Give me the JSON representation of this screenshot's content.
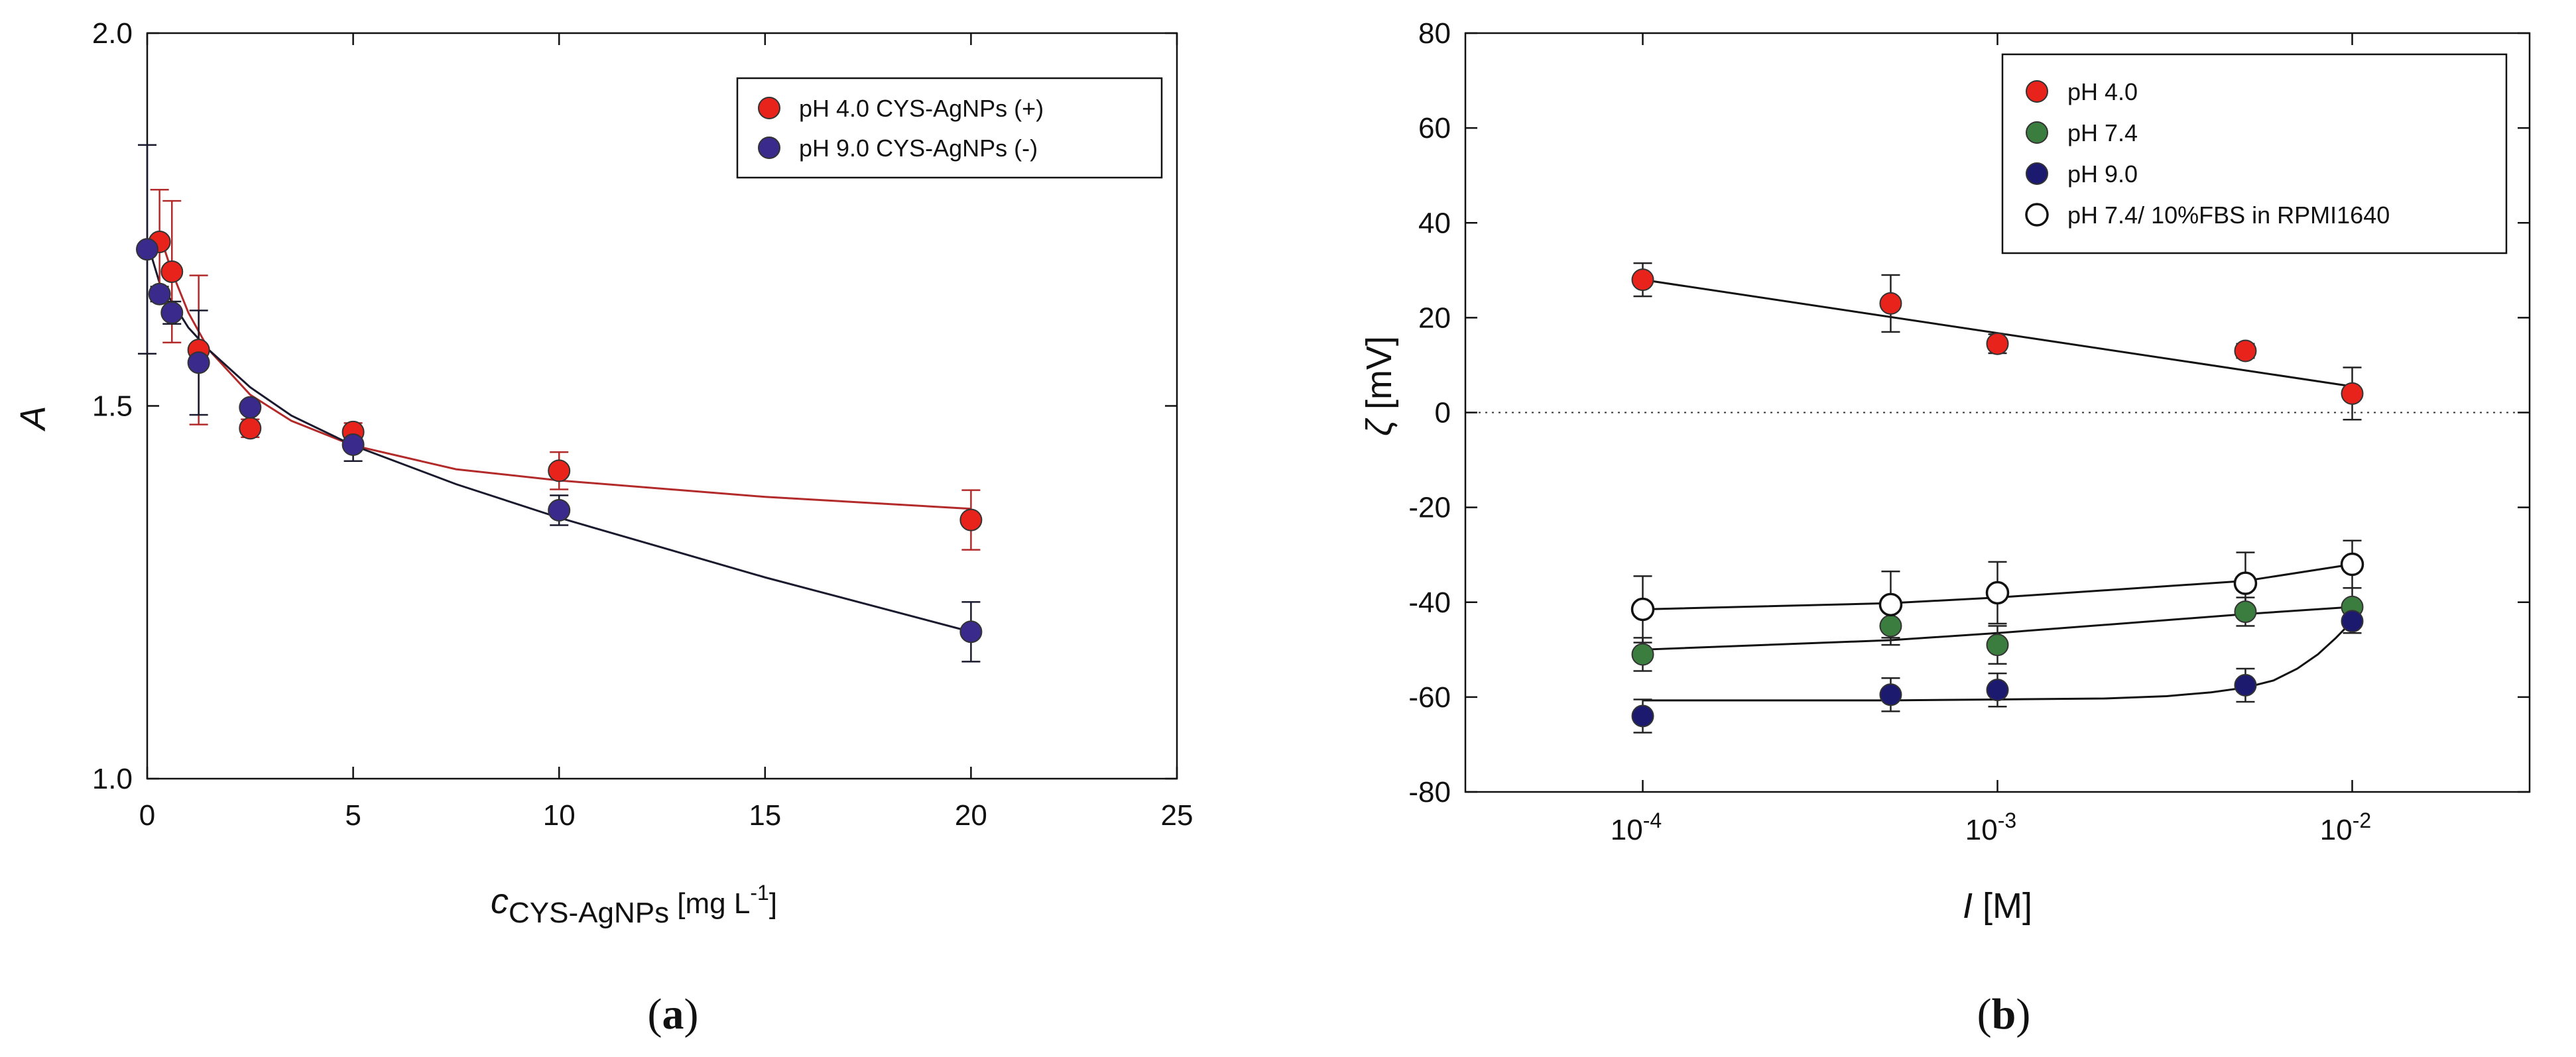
{
  "chart_data": [
    {
      "type": "scatter",
      "panel_label": "a",
      "xlabel_main": "c",
      "xlabel_sub": "CYS-AgNPs",
      "xlabel_unit_pre": "[mg L",
      "xlabel_unit_sup": "-1",
      "xlabel_unit_post": "]",
      "ylabel": "A",
      "xlim": [
        0,
        25
      ],
      "ylim": [
        1.0,
        2.0
      ],
      "xticks": [
        0,
        5,
        10,
        15,
        20,
        25
      ],
      "xtick_labels": [
        "0",
        "5",
        "10",
        "15",
        "20",
        "25"
      ],
      "yticks": [
        1.0,
        1.5,
        2.0
      ],
      "ytick_labels": [
        "1.0",
        "1.5",
        "2.0"
      ],
      "legend_position": "top-right",
      "series": [
        {
          "name": "pH 4.0 CYS-AgNPs (+)",
          "color": "#e8231c",
          "fill": "filled",
          "x": [
            0.3,
            0.6,
            1.25,
            2.5,
            5,
            10,
            20
          ],
          "y": [
            1.72,
            1.68,
            1.575,
            1.47,
            1.465,
            1.413,
            1.347
          ],
          "err": [
            0.07,
            0.095,
            0.1,
            0.012,
            0.012,
            0.025,
            0.04
          ],
          "fit": [
            [
              0.3,
              1.73
            ],
            [
              0.6,
              1.68
            ],
            [
              1.0,
              1.625
            ],
            [
              1.5,
              1.575
            ],
            [
              2.5,
              1.515
            ],
            [
              3.5,
              1.48
            ],
            [
              5,
              1.447
            ],
            [
              7.5,
              1.415
            ],
            [
              10,
              1.4
            ],
            [
              15,
              1.378
            ],
            [
              20,
              1.362
            ]
          ],
          "fit_color": "#b32a2a"
        },
        {
          "name": "pH 9.0 CYS-AgNPs (-)",
          "color": "#3a2a8c",
          "fill": "filled",
          "x": [
            0,
            0.3,
            0.6,
            1.25,
            2.5,
            5,
            10,
            20
          ],
          "y": [
            1.71,
            1.65,
            1.625,
            1.558,
            1.498,
            1.448,
            1.36,
            1.197
          ],
          "err": [
            0.14,
            0.01,
            0.015,
            0.07,
            0.008,
            0.022,
            0.02,
            0.04
          ],
          "fit": [
            [
              0,
              1.72
            ],
            [
              0.3,
              1.665
            ],
            [
              0.6,
              1.64
            ],
            [
              1,
              1.605
            ],
            [
              1.5,
              1.575
            ],
            [
              2.5,
              1.525
            ],
            [
              3.5,
              1.487
            ],
            [
              5,
              1.447
            ],
            [
              7.5,
              1.395
            ],
            [
              10,
              1.35
            ],
            [
              15,
              1.27
            ],
            [
              20,
              1.197
            ]
          ],
          "fit_color": "#1a1a2e"
        }
      ]
    },
    {
      "type": "scatter",
      "panel_label": "b",
      "xscale": "log",
      "xlabel_main": "I",
      "xlabel_unit": "[M]",
      "ylabel_symbol": "ζ",
      "ylabel_unit": "[mV]",
      "xlim_log10": [
        -4.5,
        -1.5
      ],
      "ylim": [
        -80,
        80
      ],
      "xticks_log10": [
        -4,
        -3,
        -2
      ],
      "xtick_bases": [
        "10",
        "10",
        "10"
      ],
      "xtick_exponents": [
        "-4",
        "-3",
        "-2"
      ],
      "yticks": [
        -80,
        -60,
        -40,
        -20,
        0,
        20,
        40,
        60,
        80
      ],
      "ytick_labels": [
        "-80",
        "-60",
        "-40",
        "-20",
        "0",
        "20",
        "40",
        "60",
        "80"
      ],
      "zero_line": "dotted",
      "legend_position": "top-right",
      "series": [
        {
          "name": "pH 4.0",
          "color": "#e8231c",
          "fill": "filled",
          "x": [
            0.0001,
            0.0005,
            0.001,
            0.005,
            0.01
          ],
          "y": [
            28,
            23,
            14.5,
            13,
            4
          ],
          "err": [
            3.5,
            6,
            2,
            1.5,
            5.5
          ],
          "fit": [
            [
              0.0001,
              28
            ],
            [
              0.01,
              5.5
            ]
          ]
        },
        {
          "name": "pH 7.4",
          "color": "#3b7d3f",
          "fill": "filled",
          "x": [
            0.0001,
            0.0005,
            0.001,
            0.005,
            0.01
          ],
          "y": [
            -51,
            -45,
            -49,
            -42,
            -41
          ],
          "err": [
            3.5,
            4,
            4,
            3,
            4
          ],
          "fit": [
            [
              0.0001,
              -50
            ],
            [
              0.0005,
              -48
            ],
            [
              0.001,
              -46.5
            ],
            [
              0.005,
              -42.5
            ],
            [
              0.01,
              -41
            ]
          ]
        },
        {
          "name": "pH 9.0",
          "color": "#1c1a6e",
          "fill": "filled",
          "x": [
            0.0001,
            0.0005,
            0.001,
            0.005,
            0.01
          ],
          "y": [
            -64,
            -59.5,
            -58.5,
            -57.5,
            -44
          ],
          "err": [
            3.5,
            3.5,
            3.5,
            3.5,
            2.5
          ],
          "fit": [
            [
              0.0001,
              -60.7
            ],
            [
              0.0005,
              -60.7
            ],
            [
              0.001,
              -60.5
            ],
            [
              0.002,
              -60.3
            ],
            [
              0.003,
              -59.8
            ],
            [
              0.004,
              -59
            ],
            [
              0.005,
              -58
            ],
            [
              0.006,
              -56.5
            ],
            [
              0.007,
              -54
            ],
            [
              0.008,
              -51
            ],
            [
              0.009,
              -47.5
            ],
            [
              0.01,
              -44
            ]
          ]
        },
        {
          "name": "pH 7.4/ 10%FBS in RPMI1640",
          "color": "#111111",
          "fill": "open",
          "x": [
            0.0001,
            0.0005,
            0.001,
            0.005,
            0.01
          ],
          "y": [
            -41.5,
            -40.5,
            -38,
            -36,
            -32
          ],
          "err": [
            7,
            7,
            6.5,
            6.5,
            5
          ],
          "fit": [
            [
              0.0001,
              -41.5
            ],
            [
              0.0005,
              -40.2
            ],
            [
              0.001,
              -39
            ],
            [
              0.005,
              -35.5
            ],
            [
              0.01,
              -32
            ]
          ]
        }
      ]
    }
  ]
}
